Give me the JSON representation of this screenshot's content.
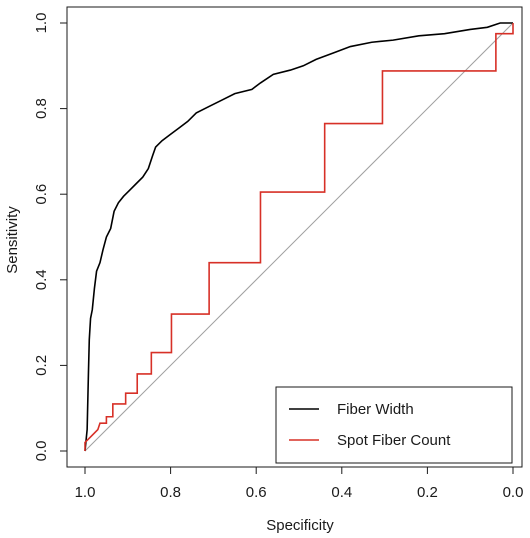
{
  "chart_data": {
    "type": "line",
    "xlabel": "Specificity",
    "ylabel": "Sensitivity",
    "xlim": [
      1.0,
      0.0
    ],
    "ylim": [
      0.0,
      1.0
    ],
    "x_reversed": true,
    "x_ticks": [
      1.0,
      0.8,
      0.6,
      0.4,
      0.2,
      0.0
    ],
    "x_tick_labels": [
      "1.0",
      "0.8",
      "0.6",
      "0.4",
      "0.2",
      "0.0"
    ],
    "y_ticks": [
      0.0,
      0.2,
      0.4,
      0.6,
      0.8,
      1.0
    ],
    "y_tick_labels": [
      "0.0",
      "0.2",
      "0.4",
      "0.6",
      "0.8",
      "1.0"
    ],
    "grid": false,
    "legend_position": "bottom-right",
    "reference_line": {
      "from": [
        1.0,
        0.0
      ],
      "to": [
        0.0,
        1.0
      ],
      "color": "#a0a0a0"
    },
    "series": [
      {
        "name": "Fiber Width",
        "color": "#000000",
        "step": false,
        "points": [
          [
            1.0,
            0.0
          ],
          [
            0.995,
            0.05
          ],
          [
            0.992,
            0.18
          ],
          [
            0.99,
            0.26
          ],
          [
            0.987,
            0.31
          ],
          [
            0.983,
            0.33
          ],
          [
            0.978,
            0.38
          ],
          [
            0.973,
            0.42
          ],
          [
            0.965,
            0.44
          ],
          [
            0.958,
            0.47
          ],
          [
            0.95,
            0.5
          ],
          [
            0.94,
            0.52
          ],
          [
            0.932,
            0.56
          ],
          [
            0.922,
            0.58
          ],
          [
            0.91,
            0.595
          ],
          [
            0.895,
            0.61
          ],
          [
            0.88,
            0.625
          ],
          [
            0.865,
            0.64
          ],
          [
            0.852,
            0.66
          ],
          [
            0.842,
            0.69
          ],
          [
            0.835,
            0.71
          ],
          [
            0.82,
            0.725
          ],
          [
            0.8,
            0.74
          ],
          [
            0.78,
            0.755
          ],
          [
            0.76,
            0.77
          ],
          [
            0.74,
            0.79
          ],
          [
            0.71,
            0.805
          ],
          [
            0.68,
            0.82
          ],
          [
            0.65,
            0.835
          ],
          [
            0.61,
            0.845
          ],
          [
            0.59,
            0.86
          ],
          [
            0.56,
            0.88
          ],
          [
            0.52,
            0.89
          ],
          [
            0.49,
            0.9
          ],
          [
            0.46,
            0.915
          ],
          [
            0.42,
            0.93
          ],
          [
            0.38,
            0.945
          ],
          [
            0.33,
            0.955
          ],
          [
            0.28,
            0.96
          ],
          [
            0.22,
            0.97
          ],
          [
            0.16,
            0.975
          ],
          [
            0.1,
            0.985
          ],
          [
            0.06,
            0.99
          ],
          [
            0.03,
            1.0
          ],
          [
            0.0,
            1.0
          ]
        ]
      },
      {
        "name": "Spot Fiber Count",
        "color": "#d73027",
        "step": true,
        "points": [
          [
            1.0,
            0.0
          ],
          [
            1.0,
            0.02
          ],
          [
            0.985,
            0.035
          ],
          [
            0.97,
            0.05
          ],
          [
            0.965,
            0.065
          ],
          [
            0.95,
            0.065
          ],
          [
            0.95,
            0.08
          ],
          [
            0.935,
            0.08
          ],
          [
            0.935,
            0.11
          ],
          [
            0.905,
            0.11
          ],
          [
            0.905,
            0.135
          ],
          [
            0.878,
            0.135
          ],
          [
            0.878,
            0.18
          ],
          [
            0.845,
            0.18
          ],
          [
            0.845,
            0.23
          ],
          [
            0.798,
            0.23
          ],
          [
            0.798,
            0.32
          ],
          [
            0.71,
            0.32
          ],
          [
            0.71,
            0.44
          ],
          [
            0.59,
            0.44
          ],
          [
            0.59,
            0.605
          ],
          [
            0.44,
            0.605
          ],
          [
            0.44,
            0.765
          ],
          [
            0.305,
            0.765
          ],
          [
            0.305,
            0.888
          ],
          [
            0.175,
            0.888
          ],
          [
            0.175,
            0.888
          ],
          [
            0.04,
            0.888
          ],
          [
            0.04,
            0.975
          ],
          [
            0.0,
            0.975
          ],
          [
            0.0,
            1.0
          ]
        ]
      }
    ]
  }
}
